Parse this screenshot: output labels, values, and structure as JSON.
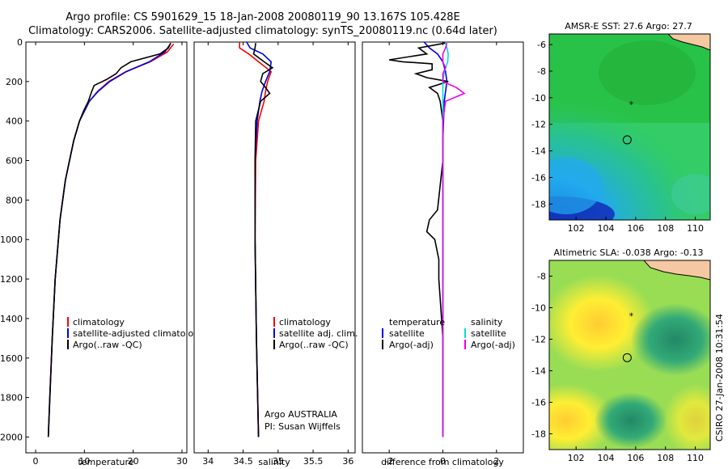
{
  "header": {
    "title_line1": "Argo profile: CS 5901629_15 18-Jan-2008 20080119_90 13.167S 105.428E",
    "title_line2": "Climatology: CARS2006. Satellite-adjusted climatology: synTS_20080119.nc (0.64d later)"
  },
  "chart_data": [
    {
      "id": "temperature",
      "type": "line",
      "xlabel": "temperature",
      "ylabel": "",
      "xlim": [
        -2,
        31
      ],
      "ylim": [
        2080,
        0
      ],
      "xticks": [
        0,
        10,
        20,
        30
      ],
      "yticks": [
        0,
        200,
        400,
        600,
        800,
        1000,
        1200,
        1400,
        1600,
        1800,
        2000
      ],
      "legend": [
        "climatology",
        "satellite-adjusted climatology",
        "Argo(..raw -QC)"
      ],
      "series": [
        {
          "name": "climatology",
          "color": "#ff0000",
          "depth": [
            10,
            50,
            100,
            150,
            200,
            250,
            300,
            400,
            500,
            700,
            900,
            1200,
            1500,
            2000
          ],
          "values": [
            28.3,
            27.0,
            23.5,
            18.5,
            15.0,
            12.7,
            11.0,
            9.0,
            7.8,
            6.1,
            5.0,
            4.0,
            3.4,
            2.6
          ]
        },
        {
          "name": "satellite-adjusted climatology",
          "color": "#0000dd",
          "depth": [
            10,
            50,
            100,
            150,
            200,
            250,
            300,
            400,
            500,
            700,
            900,
            1200,
            1500,
            2000
          ],
          "values": [
            27.6,
            26.5,
            23.3,
            18.6,
            15.2,
            12.8,
            11.0,
            9.0,
            7.8,
            6.1,
            5.0,
            4.0,
            3.4,
            2.6
          ]
        },
        {
          "name": "Argo(..raw -QC)",
          "color": "#000000",
          "depth": [
            5,
            30,
            60,
            100,
            130,
            160,
            190,
            220,
            250,
            300,
            350,
            400,
            500,
            700,
            900,
            1200,
            1500,
            1800,
            2000
          ],
          "values": [
            27.7,
            27.2,
            25.5,
            19.5,
            17.5,
            16.5,
            14.5,
            12.0,
            11.5,
            10.8,
            9.8,
            9.0,
            7.8,
            6.1,
            5.0,
            4.0,
            3.4,
            2.9,
            2.6
          ]
        }
      ]
    },
    {
      "id": "salinity",
      "type": "line",
      "xlabel": "salinity",
      "ylabel": "",
      "xlim": [
        33.8,
        36.1
      ],
      "ylim": [
        2080,
        0
      ],
      "xticks": [
        34,
        34.5,
        35,
        35.5,
        36
      ],
      "legend": [
        "climatology",
        "satellite adj. clim.",
        "Argo(..raw -QC)"
      ],
      "annotation": [
        "Argo AUSTRALIA",
        "PI: Susan Wijffels"
      ],
      "series": [
        {
          "name": "climatology",
          "color": "#ff0000",
          "depth": [
            0,
            30,
            60,
            100,
            150,
            200,
            250,
            300,
            400,
            600,
            1000,
            1500,
            2000
          ],
          "values": [
            34.45,
            34.45,
            34.58,
            34.72,
            34.9,
            34.85,
            34.82,
            34.8,
            34.72,
            34.68,
            34.67,
            34.69,
            34.72
          ]
        },
        {
          "name": "satellite adj. clim.",
          "color": "#0000dd",
          "depth": [
            0,
            30,
            60,
            100,
            150,
            200,
            250,
            300,
            400,
            600,
            1000,
            1500,
            2000
          ],
          "values": [
            34.55,
            34.6,
            34.78,
            34.9,
            34.88,
            34.82,
            34.77,
            34.74,
            34.7,
            34.67,
            34.67,
            34.69,
            34.72
          ]
        },
        {
          "name": "Argo(..raw -QC)",
          "color": "#000000",
          "depth": [
            5,
            30,
            60,
            100,
            130,
            160,
            200,
            230,
            260,
            300,
            400,
            600,
            1000,
            1500,
            2000
          ],
          "values": [
            34.68,
            34.67,
            34.65,
            34.8,
            34.92,
            34.78,
            34.75,
            34.82,
            34.88,
            34.75,
            34.68,
            34.67,
            34.67,
            34.69,
            34.72
          ]
        }
      ]
    },
    {
      "id": "difference",
      "type": "line",
      "xlabel": "difference from climatology",
      "ylabel": "",
      "xlim": [
        -3,
        3
      ],
      "ylim": [
        2080,
        0
      ],
      "xticks": [
        -2,
        0,
        2
      ],
      "legend_left_title": "temperature",
      "legend_right_title": "salinity",
      "legend_left": [
        "satellite",
        "Argo(-adj)"
      ],
      "legend_right": [
        "satellite",
        "Argo(-adj)"
      ],
      "series": [
        {
          "name": "temperature satellite",
          "color": "#0000dd",
          "depth": [
            0,
            30,
            60,
            100,
            150,
            200,
            300,
            500,
            2000
          ],
          "values": [
            -0.7,
            -0.5,
            -0.2,
            0.0,
            0.1,
            0.15,
            0.05,
            0.0,
            0.0
          ]
        },
        {
          "name": "temperature Argo(-adj)",
          "color": "#000000",
          "depth": [
            5,
            30,
            60,
            90,
            100,
            110,
            140,
            160,
            180,
            200,
            230,
            260,
            300,
            400,
            600,
            850,
            900,
            960,
            1000,
            1100,
            1200,
            1300,
            1500,
            2000
          ],
          "values": [
            0.1,
            -0.9,
            -0.6,
            -2.0,
            -1.5,
            -0.4,
            -0.4,
            -1.0,
            -0.6,
            0.2,
            -0.5,
            -0.2,
            -0.1,
            0.0,
            0.0,
            -0.2,
            -0.5,
            -0.6,
            -0.3,
            -0.15,
            -0.15,
            -0.1,
            0.0,
            0.0
          ]
        },
        {
          "name": "salinity satellite",
          "color": "#00dddd",
          "depth": [
            0,
            30,
            60,
            100,
            150,
            200,
            300,
            500,
            2000
          ],
          "values": [
            0.1,
            0.15,
            0.2,
            0.18,
            0.05,
            0.0,
            0.0,
            0.0,
            0.0
          ]
        },
        {
          "name": "salinity Argo(-adj)",
          "color": "#ee00ee",
          "depth": [
            5,
            30,
            60,
            100,
            130,
            160,
            200,
            230,
            260,
            300,
            400,
            600,
            2000
          ],
          "values": [
            0.15,
            0.1,
            0.0,
            0.0,
            0.1,
            0.0,
            0.0,
            0.5,
            0.8,
            0.1,
            0.0,
            0.0,
            0.0
          ]
        }
      ]
    },
    {
      "id": "sst_map",
      "type": "heatmap",
      "title": "AMSR-E SST: 27.6 Argo: 27.7",
      "xlim": [
        100.2,
        111.0
      ],
      "ylim": [
        -19.2,
        -5.2
      ],
      "xticks": [
        102,
        104,
        106,
        108,
        110
      ],
      "yticks": [
        -6,
        -8,
        -10,
        -12,
        -14,
        -16,
        -18
      ],
      "markers": [
        {
          "type": "float-position",
          "lon": 105.7,
          "lat": -10.5
        },
        {
          "type": "profile-circle",
          "lon": 105.43,
          "lat": -13.17
        }
      ]
    },
    {
      "id": "sla_map",
      "type": "heatmap",
      "title": "Altimetric SLA: -0.038 Argo: -0.13",
      "xlim": [
        100.2,
        111.0
      ],
      "ylim": [
        -19.0,
        -7.0
      ],
      "xticks": [
        102,
        104,
        106,
        108,
        110
      ],
      "yticks": [
        -8,
        -10,
        -12,
        -14,
        -16,
        -18
      ],
      "markers": [
        {
          "type": "float-position",
          "lon": 105.7,
          "lat": -10.5
        },
        {
          "type": "profile-circle",
          "lon": 105.43,
          "lat": -13.17
        }
      ]
    }
  ],
  "footer": {
    "credit": "CSIRO 27-Jan-2008 10:31:54"
  },
  "colors": {
    "land": "#f4c8a0",
    "sst_high": "#22bb33",
    "sst_mid": "#33cc66",
    "sst_low": "#22aaee",
    "sst_lowest": "#1133bb",
    "sla_high": "#ffee33",
    "sla_mid": "#99dd55",
    "sla_low": "#33aa77"
  }
}
